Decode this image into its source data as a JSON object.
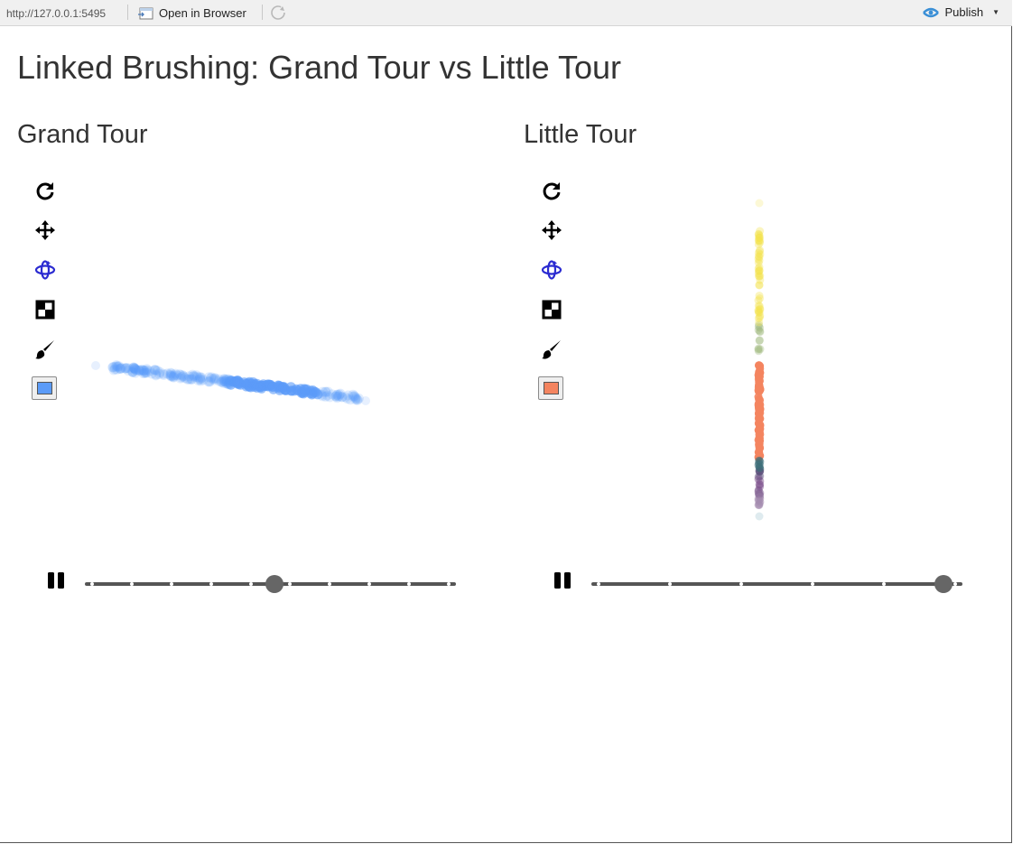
{
  "toolbar": {
    "url": "http://127.0.0.1:5495",
    "open_in_browser": "Open in Browser",
    "publish": "Publish",
    "publish_icon": "rstudio-publish-icon",
    "refresh_icon": "refresh-icon"
  },
  "page": {
    "title": "Linked Brushing: Grand Tour vs Little Tour"
  },
  "panels": [
    {
      "title": "Grand Tour",
      "tools": [
        "reset-icon",
        "pan-icon",
        "rotate-icon",
        "select-icon",
        "brush-icon",
        "color-swatch"
      ],
      "selected_color": "#5b9bf8",
      "slider": {
        "ticks": 10,
        "position": 0.51
      }
    },
    {
      "title": "Little Tour",
      "tools": [
        "reset-icon",
        "pan-icon",
        "rotate-icon",
        "select-icon",
        "brush-icon",
        "color-swatch"
      ],
      "selected_color": "#f4845f",
      "slider": {
        "ticks": 6,
        "position": 0.95
      }
    }
  ],
  "colors": {
    "active_tool": "#2b2bd1",
    "brush_blue": "#5b9bf8",
    "brush_orange": "#f4845f"
  }
}
